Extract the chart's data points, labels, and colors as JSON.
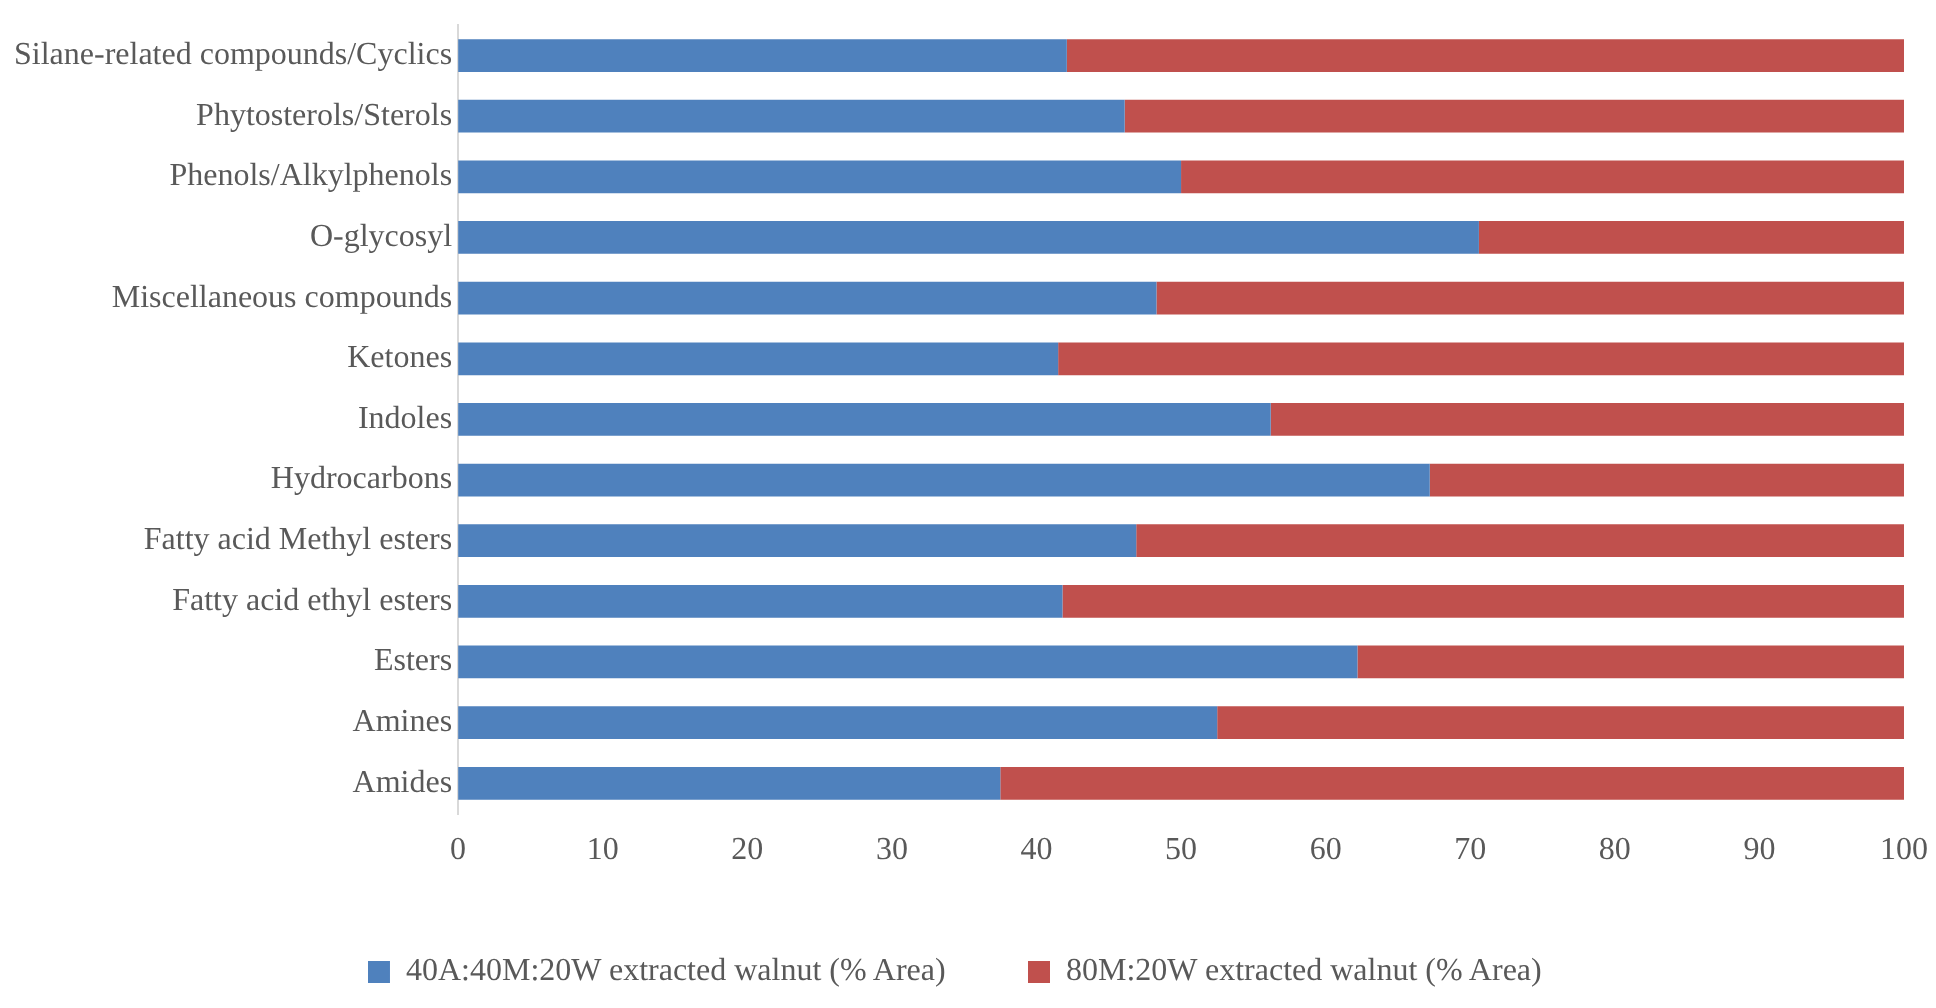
{
  "chart_data": {
    "type": "bar",
    "orientation": "horizontal",
    "stacked": true,
    "categories": [
      "Silane-related compounds/Cyclics",
      "Phytosterols/Sterols",
      "Phenols/Alkylphenols",
      "O-glycosyl",
      "Miscellaneous compounds",
      "Ketones",
      "Indoles",
      "Hydrocarbons",
      "Fatty acid Methyl esters",
      "Fatty acid ethyl esters",
      "Esters",
      "Amines",
      "Amides"
    ],
    "series": [
      {
        "name": "40A:40M:20W extracted walnut (% Area)",
        "color": "#4f81bd",
        "values": [
          42.1,
          46.1,
          50,
          70.6,
          48.3,
          41.5,
          56.2,
          67.2,
          46.9,
          41.8,
          62.2,
          52.5,
          37.5
        ]
      },
      {
        "name": "80M:20W extracted walnut (% Area)",
        "color": "#c0504d",
        "values": [
          57.9,
          53.9,
          50,
          29.4,
          51.7,
          58.5,
          43.8,
          32.8,
          53.1,
          58.2,
          37.8,
          47.5,
          62.5
        ]
      }
    ],
    "xlim": [
      0,
      100
    ],
    "xticks": [
      0,
      10,
      20,
      30,
      40,
      50,
      60,
      70,
      80,
      90,
      100
    ],
    "grid": false,
    "legend": "bottom"
  }
}
